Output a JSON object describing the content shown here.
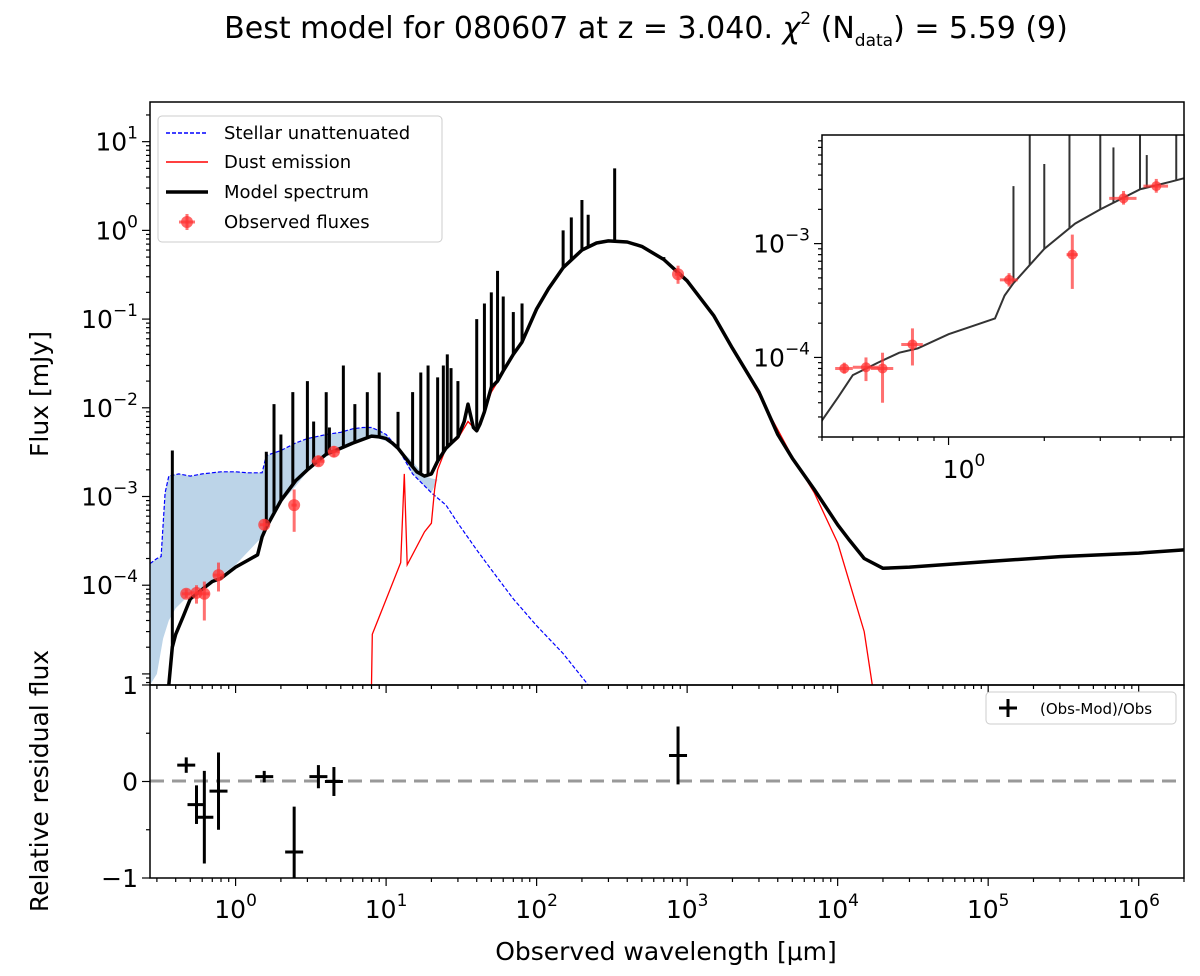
{
  "chart_data": {
    "type": "sed",
    "title": {
      "main": "Best model for 080607 at z = 3.040. ",
      "chi": "χ",
      "chi_exp": "2",
      "ndata_open": " (N",
      "ndata_sub": "data",
      "ndata_close": ") = 5.59 (9)"
    },
    "xlabel": "Observed wavelength [μm]",
    "xlim": [
      0.27,
      2000000
    ],
    "main_panel": {
      "ylabel": "Flux [mJy]",
      "ylim": [
        7.5e-06,
        28
      ],
      "yscale": "log",
      "x_ticks": [
        1,
        10,
        100,
        1000,
        10000,
        100000,
        1000000
      ],
      "y_ticks": [
        {
          "value": 10,
          "base": "10",
          "exp": "1"
        },
        {
          "value": 1,
          "base": "10",
          "exp": "0"
        },
        {
          "value": 0.1,
          "base": "10",
          "exp": "−1"
        },
        {
          "value": 0.01,
          "base": "10",
          "exp": "−2"
        },
        {
          "value": 0.001,
          "base": "10",
          "exp": "−3"
        },
        {
          "value": 0.0001,
          "base": "10",
          "exp": "−4"
        }
      ],
      "y_bottom_label": "1",
      "legend": [
        {
          "label": "Stellar unattenuated",
          "color": "#0000ff",
          "style": "dashed"
        },
        {
          "label": "Dust emission",
          "color": "#ff0000",
          "style": "solid"
        },
        {
          "label": "Model spectrum",
          "color": "#000000",
          "style": "thick"
        },
        {
          "label": "Observed fluxes",
          "color": "#ff3333",
          "style": "marker"
        }
      ],
      "series": {
        "stellar_unattenuated": [
          [
            0.27,
            0.000175
          ],
          [
            0.3,
            0.0002
          ],
          [
            0.32,
            0.00021
          ],
          [
            0.34,
            0.0011
          ],
          [
            0.36,
            0.0017
          ],
          [
            0.42,
            0.0018
          ],
          [
            0.5,
            0.0017
          ],
          [
            0.6,
            0.0018
          ],
          [
            0.8,
            0.0019
          ],
          [
            1.0,
            0.0019
          ],
          [
            1.2,
            0.00185
          ],
          [
            1.5,
            0.00185
          ],
          [
            1.6,
            0.0029
          ],
          [
            2.0,
            0.0033
          ],
          [
            2.5,
            0.004
          ],
          [
            3.0,
            0.0045
          ],
          [
            4.0,
            0.005
          ],
          [
            5.0,
            0.0053
          ],
          [
            6.0,
            0.0058
          ],
          [
            7.0,
            0.006
          ],
          [
            8.0,
            0.006
          ],
          [
            9.0,
            0.0055
          ],
          [
            10,
            0.005
          ],
          [
            12,
            0.0035
          ],
          [
            15,
            0.0018
          ],
          [
            20,
            0.0011
          ],
          [
            25,
            0.0008
          ],
          [
            30,
            0.0005
          ],
          [
            40,
            0.00025
          ],
          [
            50,
            0.00015
          ],
          [
            70,
            7e-05
          ],
          [
            100,
            3.5e-05
          ],
          [
            150,
            1.7e-05
          ],
          [
            220,
            7.5e-06
          ]
        ],
        "stellar_attenuated": [
          [
            0.27,
            7.5e-06
          ],
          [
            0.3,
            1e-05
          ],
          [
            0.33,
            2.5e-05
          ],
          [
            0.36,
            4e-05
          ],
          [
            0.4,
            5.5e-05
          ],
          [
            0.5,
            8e-05
          ],
          [
            0.7,
            0.00011
          ],
          [
            1.0,
            0.00017
          ],
          [
            1.5,
            0.00035
          ],
          [
            2.0,
            0.00085
          ],
          [
            2.5,
            0.0013
          ],
          [
            3.0,
            0.0019
          ],
          [
            4.0,
            0.0028
          ],
          [
            5.0,
            0.0036
          ],
          [
            6.0,
            0.0042
          ],
          [
            7.0,
            0.0045
          ],
          [
            8.0,
            0.0047
          ],
          [
            9.0,
            0.0045
          ],
          [
            10,
            0.0042
          ],
          [
            12,
            0.0035
          ],
          [
            15,
            0.0025
          ],
          [
            18,
            0.0017
          ],
          [
            20,
            0.0016
          ],
          [
            22,
            0.00155
          ]
        ],
        "dust_emission": [
          [
            8,
            7.5e-06
          ],
          [
            8.1,
            2.8e-05
          ],
          [
            12.5,
            0.00018
          ],
          [
            13.2,
            0.0018
          ],
          [
            13.8,
            0.00017
          ],
          [
            18,
            0.0004
          ],
          [
            20,
            0.0005
          ],
          [
            21,
            0.0012
          ],
          [
            22,
            0.002
          ],
          [
            25,
            0.0035
          ],
          [
            30,
            0.0045
          ],
          [
            35,
            0.007
          ],
          [
            40,
            0.0055
          ],
          [
            45,
            0.009
          ],
          [
            50,
            0.015
          ],
          [
            60,
            0.025
          ],
          [
            70,
            0.04
          ],
          [
            80,
            0.055
          ],
          [
            100,
            0.13
          ],
          [
            120,
            0.22
          ],
          [
            150,
            0.38
          ],
          [
            200,
            0.6
          ],
          [
            250,
            0.72
          ],
          [
            300,
            0.76
          ],
          [
            400,
            0.74
          ],
          [
            500,
            0.66
          ],
          [
            700,
            0.47
          ],
          [
            1000,
            0.27
          ],
          [
            1500,
            0.11
          ],
          [
            2000,
            0.047
          ],
          [
            3000,
            0.014
          ],
          [
            5000,
            0.0028
          ],
          [
            7000,
            0.0011
          ],
          [
            10000,
            0.0003
          ],
          [
            15000,
            3e-05
          ],
          [
            17000,
            7.5e-06
          ]
        ],
        "model_spectrum": [
          [
            0.36,
            7.5e-06
          ],
          [
            0.38,
            2e-05
          ],
          [
            0.4,
            2.8e-05
          ],
          [
            0.45,
            4.5e-05
          ],
          [
            0.5,
            7e-05
          ],
          [
            0.6,
            9e-05
          ],
          [
            0.7,
            0.00011
          ],
          [
            0.8,
            0.00012
          ],
          [
            1.0,
            0.00016
          ],
          [
            1.2,
            0.00019
          ],
          [
            1.4,
            0.00022
          ],
          [
            1.5,
            0.00035
          ],
          [
            1.6,
            0.00045
          ],
          [
            2.0,
            0.0009
          ],
          [
            2.5,
            0.0015
          ],
          [
            3.0,
            0.002
          ],
          [
            4.0,
            0.003
          ],
          [
            5.0,
            0.0035
          ],
          [
            6.0,
            0.004
          ],
          [
            7.0,
            0.0044
          ],
          [
            8.0,
            0.0048
          ],
          [
            9.0,
            0.0047
          ],
          [
            10,
            0.0045
          ],
          [
            11,
            0.004
          ],
          [
            12,
            0.0035
          ],
          [
            14,
            0.0025
          ],
          [
            16,
            0.0019
          ],
          [
            18,
            0.0017
          ],
          [
            20,
            0.0018
          ],
          [
            22,
            0.0025
          ],
          [
            25,
            0.0035
          ],
          [
            30,
            0.0047
          ],
          [
            33,
            0.007
          ],
          [
            35,
            0.011
          ],
          [
            38,
            0.006
          ],
          [
            40,
            0.0055
          ],
          [
            42,
            0.0065
          ],
          [
            45,
            0.009
          ],
          [
            50,
            0.017
          ],
          [
            55,
            0.02
          ],
          [
            60,
            0.026
          ],
          [
            70,
            0.04
          ],
          [
            80,
            0.055
          ],
          [
            100,
            0.13
          ],
          [
            120,
            0.22
          ],
          [
            150,
            0.38
          ],
          [
            200,
            0.6
          ],
          [
            250,
            0.72
          ],
          [
            300,
            0.76
          ],
          [
            400,
            0.74
          ],
          [
            500,
            0.66
          ],
          [
            700,
            0.47
          ],
          [
            1000,
            0.27
          ],
          [
            1500,
            0.11
          ],
          [
            2000,
            0.047
          ],
          [
            3000,
            0.015
          ],
          [
            4000,
            0.005
          ],
          [
            5000,
            0.0027
          ],
          [
            7000,
            0.0012
          ],
          [
            10000,
            0.00048
          ],
          [
            12000,
            0.00032
          ],
          [
            15000,
            0.0002
          ],
          [
            20000,
            0.000155
          ],
          [
            30000,
            0.00016
          ],
          [
            100000,
            0.000185
          ],
          [
            300000,
            0.00021
          ],
          [
            1000000,
            0.00023
          ],
          [
            2000000,
            0.00025
          ]
        ],
        "emission_lines": [
          [
            0.38,
            0.0033
          ],
          [
            1.6,
            0.0032
          ],
          [
            1.8,
            0.011
          ],
          [
            2.0,
            0.005
          ],
          [
            2.4,
            0.015
          ],
          [
            3.0,
            0.02
          ],
          [
            3.3,
            0.007
          ],
          [
            4.0,
            0.015
          ],
          [
            4.2,
            0.006
          ],
          [
            5.2,
            0.03
          ],
          [
            6.2,
            0.011
          ],
          [
            7.5,
            0.015
          ],
          [
            9.0,
            0.025
          ],
          [
            12,
            0.009
          ],
          [
            15,
            0.015
          ],
          [
            17,
            0.025
          ],
          [
            19,
            0.03
          ],
          [
            22,
            0.022
          ],
          [
            24,
            0.03
          ],
          [
            25.5,
            0.04
          ],
          [
            27,
            0.028
          ],
          [
            30,
            0.02
          ],
          [
            40,
            0.1
          ],
          [
            45,
            0.15
          ],
          [
            50,
            0.2
          ],
          [
            55,
            0.35
          ],
          [
            60,
            0.18
          ],
          [
            70,
            0.12
          ],
          [
            80,
            0.15
          ],
          [
            150,
            1.0
          ],
          [
            170,
            1.4
          ],
          [
            200,
            2.2
          ],
          [
            220,
            1.5
          ],
          [
            330,
            5.0
          ],
          [
            700,
            0.5
          ]
        ],
        "observed_fluxes": [
          {
            "x": 0.47,
            "y": 8e-05,
            "xerr": [
              0.44,
              0.5
            ],
            "yerr": [
              7.2e-05,
              9e-05
            ]
          },
          {
            "x": 0.55,
            "y": 8.2e-05,
            "xerr": [
              0.5,
              0.6
            ],
            "yerr": [
              6.2e-05,
              0.0001
            ]
          },
          {
            "x": 0.62,
            "y": 8e-05,
            "xerr": [
              0.57,
              0.67
            ],
            "yerr": [
              4e-05,
              0.00011
            ]
          },
          {
            "x": 0.77,
            "y": 0.00013,
            "xerr": [
              0.71,
              0.83
            ],
            "yerr": [
              8.5e-05,
              0.00018
            ]
          },
          {
            "x": 1.55,
            "y": 0.00048,
            "xerr": [
              1.45,
              1.65
            ],
            "yerr": [
              0.00042,
              0.00055
            ]
          },
          {
            "x": 2.45,
            "y": 0.0008,
            "xerr": [
              2.35,
              2.55
            ],
            "yerr": [
              0.0004,
              0.0012
            ]
          },
          {
            "x": 3.55,
            "y": 0.0025,
            "xerr": [
              3.2,
              3.9
            ],
            "yerr": [
              0.0022,
              0.0029
            ]
          },
          {
            "x": 4.5,
            "y": 0.0032,
            "xerr": [
              4.1,
              4.9
            ],
            "yerr": [
              0.0028,
              0.0037
            ]
          },
          {
            "x": 870,
            "y": 0.32,
            "xerr": [
              830,
              910
            ],
            "yerr": [
              0.25,
              0.4
            ]
          }
        ]
      }
    },
    "inset": {
      "xlim": [
        0.4,
        5.5
      ],
      "ylim": [
        2e-05,
        0.009
      ],
      "x_tick_label": "10",
      "x_tick_exp": "0",
      "y_ticks": [
        {
          "value": 0.001,
          "base": "10",
          "exp": "−3"
        },
        {
          "value": 0.0001,
          "base": "10",
          "exp": "−4"
        }
      ]
    },
    "residual_panel": {
      "ylabel": "Relative residual flux",
      "ylim": [
        -1,
        1
      ],
      "y_ticks": [
        {
          "value": 1,
          "label": "1"
        },
        {
          "value": 0,
          "label": "0"
        },
        {
          "value": -1,
          "label": "−1"
        }
      ],
      "legend_label": "(Obs-Mod)/Obs",
      "points": [
        {
          "x": 0.47,
          "y": 0.17,
          "yerr": 0.08
        },
        {
          "x": 0.55,
          "y": -0.24,
          "yerr": 0.2
        },
        {
          "x": 0.62,
          "y": -0.37,
          "yerr": 0.48
        },
        {
          "x": 0.77,
          "y": -0.1,
          "yerr": 0.4
        },
        {
          "x": 1.55,
          "y": 0.05,
          "yerr": 0.06
        },
        {
          "x": 2.45,
          "y": -0.73,
          "yerr": 0.47
        },
        {
          "x": 3.55,
          "y": 0.05,
          "yerr": 0.12
        },
        {
          "x": 4.5,
          "y": 0.0,
          "yerr": 0.15
        },
        {
          "x": 870,
          "y": 0.27,
          "yerr": 0.3
        }
      ]
    }
  }
}
